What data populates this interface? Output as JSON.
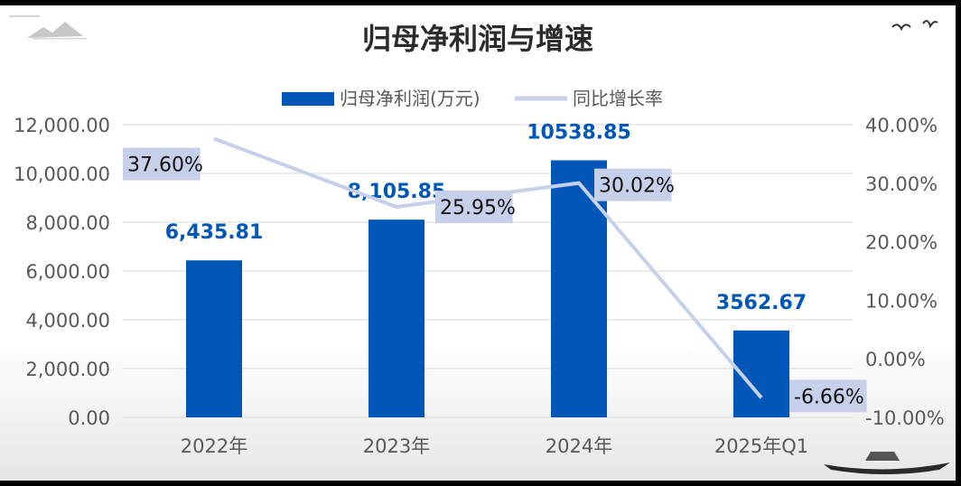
{
  "chart_data": {
    "type": "bar+line",
    "title": "归母净利润与增速",
    "categories": [
      "2022年",
      "2023年",
      "2024年",
      "2025年Q1"
    ],
    "series": [
      {
        "name": "归母净利润(万元)",
        "type": "bar",
        "axis": "left",
        "values": [
          6435.81,
          8105.85,
          10538.85,
          3562.67
        ],
        "data_labels": [
          "6,435.81",
          "8,105.85",
          "10538.85",
          "3562.67"
        ],
        "color": "#0057B7"
      },
      {
        "name": "同比增长率",
        "type": "line",
        "axis": "right",
        "values": [
          37.6,
          25.95,
          30.02,
          -6.66
        ],
        "data_labels": [
          "37.60%",
          "25.95%",
          "30.02%",
          "-6.66%"
        ],
        "color": "#C7D0EA"
      }
    ],
    "y_left": {
      "ylim": [
        0,
        12000
      ],
      "ticks": [
        "0.00",
        "2,000.00",
        "4,000.00",
        "6,000.00",
        "8,000.00",
        "10,000.00",
        "12,000.00"
      ]
    },
    "y_right": {
      "ylim": [
        -10,
        40
      ],
      "ticks": [
        "-10.00%",
        "0.00%",
        "10.00%",
        "20.00%",
        "30.00%",
        "40.00%"
      ]
    },
    "grid": true,
    "legend_position": "top-center",
    "colors": {
      "title": "#2b2b2b",
      "axis_text": "#595959",
      "bar_label": "#0057B7",
      "line_label_bg": "#C7D0EA",
      "gridline": "#d9d9d9"
    }
  }
}
